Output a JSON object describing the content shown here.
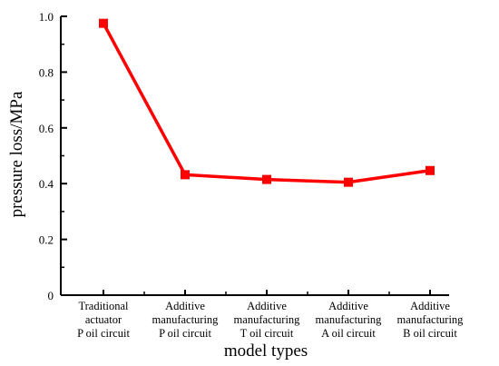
{
  "chart_data": {
    "type": "line",
    "title": "",
    "xlabel": "model types",
    "ylabel": "pressure loss/MPa",
    "ylim": [
      0,
      1.0
    ],
    "yticks": [
      "0",
      "0.2",
      "0.4",
      "0.6",
      "0.8",
      "1.0"
    ],
    "categories": [
      [
        "Traditional",
        "actuator",
        "P oil circuit"
      ],
      [
        "Additive",
        "manufacturing",
        "P oil circuit"
      ],
      [
        "Additive",
        "manufacturing",
        "T oil circuit"
      ],
      [
        "Additive",
        "manufacturing",
        "A oil circuit"
      ],
      [
        "Additive",
        "manufacturing",
        "B oil circuit"
      ]
    ],
    "series": [
      {
        "values": [
          0.975,
          0.432,
          0.415,
          0.405,
          0.447
        ],
        "color": "#ff0000",
        "marker": "square"
      }
    ],
    "grid": false,
    "legend": "none"
  }
}
